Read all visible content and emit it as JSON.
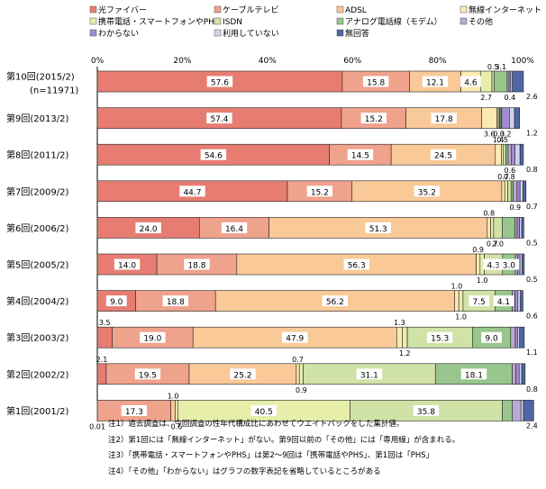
{
  "chart_data": {
    "type": "bar",
    "orientation": "horizontal",
    "stacked": true,
    "xlim": [
      0,
      100
    ],
    "x_ticks": [
      "0%",
      "20%",
      "40%",
      "60%",
      "80%",
      "100%"
    ],
    "legend_position": "top",
    "categories": [
      "第10回(2015/2)\n(n=11971)",
      "第9回(2013/2)",
      "第8回(2011/2)",
      "第7回(2009/2)",
      "第6回(2006/2)",
      "第5回(2005/2)",
      "第4回(2004/2)",
      "第3回(2003/2)",
      "第2回(2002/2)",
      "第1回(2001/2)"
    ],
    "series": [
      {
        "name": "光ファイバー",
        "color": "#e77d72",
        "values": [
          57.6,
          57.4,
          54.6,
          44.7,
          24.0,
          14.0,
          9.0,
          3.5,
          2.1,
          0.01
        ]
      },
      {
        "name": "ケーブルテレビ",
        "color": "#efa28c",
        "values": [
          15.8,
          15.2,
          14.5,
          15.2,
          16.4,
          18.8,
          18.8,
          19.0,
          19.5,
          17.3
        ]
      },
      {
        "name": "ADSL",
        "color": "#fac998",
        "values": [
          12.1,
          17.8,
          24.5,
          35.2,
          51.3,
          56.3,
          56.2,
          47.9,
          25.2,
          1.0
        ]
      },
      {
        "name": "無線インターネット",
        "color": "#fde9b3",
        "values": [
          4.6,
          3.6,
          1.4,
          0.7,
          0.8,
          0.9,
          1.0,
          1.3,
          0.7,
          0.6
        ]
      },
      {
        "name": "携帯電話・スマートフォンやPHS",
        "color": "#e6eeaa",
        "values": [
          2.7,
          0.3,
          0.5,
          0.7,
          0.7,
          1.0,
          1.0,
          1.2,
          0.9,
          40.5
        ]
      },
      {
        "name": "ISDN",
        "color": "#d1e2a6",
        "values": [
          0.5,
          0.3,
          0.6,
          0.8,
          2.0,
          4.3,
          7.5,
          15.3,
          31.1,
          35.8
        ]
      },
      {
        "name": "アナログ電話線（モデム）",
        "color": "#98c68c",
        "values": [
          3.1,
          0.3,
          0.5,
          0.5,
          3.0,
          3.0,
          4.1,
          9.0,
          18.1,
          2.4
        ]
      },
      {
        "name": "その他",
        "color": "#b9a9d4",
        "values": [
          0.4,
          0.2,
          0.8,
          0.9,
          0.5,
          0.5,
          0.6,
          1.1,
          0.8,
          2.0
        ]
      },
      {
        "name": "わからない",
        "color": "#a38ccd",
        "values": [
          0.4,
          1.8,
          0.8,
          0.7,
          0.6,
          0.6,
          0.7,
          0.5,
          0.8,
          0.0
        ]
      },
      {
        "name": "利用していない",
        "color": "#ced4ee",
        "values": [
          0.4,
          1.2,
          1.2,
          0.7,
          0.5,
          0.5,
          0.6,
          0.5,
          0.6,
          0.6
        ]
      },
      {
        "name": "無回答",
        "color": "#4f66a6",
        "values": [
          2.6,
          1.2,
          0.8,
          0.7,
          0.5,
          0.5,
          0.6,
          1.1,
          0.8,
          2.4
        ]
      }
    ],
    "bar_labels": [
      [
        [
          "57.6",
          "in",
          0
        ],
        [
          "15.8",
          "in",
          1
        ],
        [
          "12.1",
          "in",
          2
        ],
        [
          "4.6",
          "in",
          3
        ],
        [
          "2.7",
          "below",
          4
        ],
        [
          "0.5",
          "above",
          5
        ],
        [
          "3.1",
          "above",
          6
        ],
        [
          "0.4",
          "below",
          8
        ],
        [
          "2.6",
          "right",
          10
        ]
      ],
      [
        [
          "57.4",
          "in",
          0
        ],
        [
          "15.2",
          "in",
          1
        ],
        [
          "17.8",
          "in",
          2
        ],
        [
          "3.6",
          "below",
          3
        ],
        [
          "0.3",
          "below",
          5
        ],
        [
          "0.2",
          "below",
          8
        ],
        [
          "1.2",
          "right",
          10
        ]
      ],
      [
        [
          "54.6",
          "in",
          0
        ],
        [
          "14.5",
          "in",
          1
        ],
        [
          "24.5",
          "in",
          2
        ],
        [
          "1.4",
          "above",
          3
        ],
        [
          "0.5",
          "above",
          4
        ],
        [
          "0.6",
          "below",
          7
        ],
        [
          "0.8",
          "right",
          10
        ]
      ],
      [
        [
          "44.7",
          "in",
          0
        ],
        [
          "15.2",
          "in",
          1
        ],
        [
          "35.2",
          "in",
          2
        ],
        [
          "0.7",
          "above",
          3
        ],
        [
          "0.8",
          "above",
          5
        ],
        [
          "0.9",
          "below",
          7
        ],
        [
          "0.7",
          "right",
          10
        ]
      ],
      [
        [
          "24.0",
          "in",
          0
        ],
        [
          "16.4",
          "in",
          1
        ],
        [
          "51.3",
          "in",
          2
        ],
        [
          "0.8",
          "above",
          3
        ],
        [
          "0.7",
          "below",
          4
        ],
        [
          "2.0",
          "below",
          5
        ],
        [
          "0.5",
          "right",
          10
        ]
      ],
      [
        [
          "14.0",
          "in",
          0
        ],
        [
          "18.8",
          "in",
          1
        ],
        [
          "56.3",
          "in",
          2
        ],
        [
          "0.9",
          "above",
          3
        ],
        [
          "1.0",
          "below",
          4
        ],
        [
          "4.3",
          "in",
          5
        ],
        [
          "3.0",
          "in",
          6
        ],
        [
          "0.5",
          "right",
          10
        ]
      ],
      [
        [
          "9.0",
          "in",
          0
        ],
        [
          "18.8",
          "in",
          1
        ],
        [
          "56.2",
          "in",
          2
        ],
        [
          "1.0",
          "above",
          3
        ],
        [
          "1.0",
          "below",
          4
        ],
        [
          "7.5",
          "in",
          5
        ],
        [
          "4.1",
          "in",
          6
        ],
        [
          "0.6",
          "right",
          10
        ]
      ],
      [
        [
          "3.5",
          "above",
          0
        ],
        [
          "19.0",
          "in",
          1
        ],
        [
          "47.9",
          "in",
          2
        ],
        [
          "1.3",
          "above",
          3
        ],
        [
          "1.2",
          "below",
          4
        ],
        [
          "15.3",
          "in",
          5
        ],
        [
          "9.0",
          "in",
          6
        ],
        [
          "1.1",
          "right",
          10
        ]
      ],
      [
        [
          "2.1",
          "above",
          0
        ],
        [
          "19.5",
          "in",
          1
        ],
        [
          "25.2",
          "in",
          2
        ],
        [
          "0.7",
          "above",
          3
        ],
        [
          "0.9",
          "below",
          4
        ],
        [
          "31.1",
          "in",
          5
        ],
        [
          "18.1",
          "in",
          6
        ],
        [
          "0.8",
          "right",
          10
        ]
      ],
      [
        [
          "0.01",
          "below",
          0
        ],
        [
          "17.3",
          "in",
          1
        ],
        [
          "1.0",
          "above",
          2
        ],
        [
          "0.6",
          "below",
          3
        ],
        [
          "40.5",
          "in",
          4
        ],
        [
          "35.8",
          "in",
          5
        ],
        [
          "2.4",
          "right",
          10
        ]
      ]
    ]
  },
  "notes": [
    "注1）過去調査は、今回調査の性年代構成比にあわせてウエイトバックをした集計値。",
    "注2）第1回には「無線インターネット」がない。第9回以前の「その他」には「専用線」が含まれる。",
    "注3）「携帯電話・スマートフォンやPHS」は第2～9回は「携帯電話やPHS」、第1回は「PHS」",
    "注4）「その他」「わからない」はグラフの数字表記を省略しているところがある"
  ]
}
